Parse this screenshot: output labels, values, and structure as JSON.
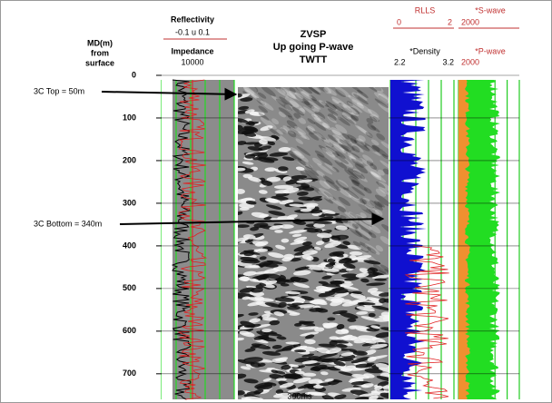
{
  "depth_axis": {
    "label_lines": [
      "MD(m)",
      "from",
      "surface"
    ],
    "ticks": [
      0,
      100,
      200,
      300,
      400,
      500,
      600,
      700
    ],
    "range": [
      0,
      760
    ]
  },
  "impedance_track": {
    "title": "Reflectivity",
    "scale": "-0.1 u 0.1",
    "curve": "Impedance",
    "curve_scale": "10000"
  },
  "seismic_panel": {
    "title_lines": [
      "ZVSP",
      "Up going P-wave",
      "TWTT"
    ],
    "footer": "300ms"
  },
  "density_track": {
    "curve1": "RLLS",
    "curve1_min": 0,
    "curve1_max": 2,
    "curve2": "*Density",
    "curve2_min": 2.2,
    "curve2_max": 3.2
  },
  "velocity_track": {
    "curve1": "*S-wave",
    "curve1_scale": 2000,
    "curve2": "*P-wave",
    "curve2_scale": 2000
  },
  "annotations": [
    {
      "text": "3C Top = 50m"
    },
    {
      "text": "3C Bottom = 340m"
    }
  ]
}
